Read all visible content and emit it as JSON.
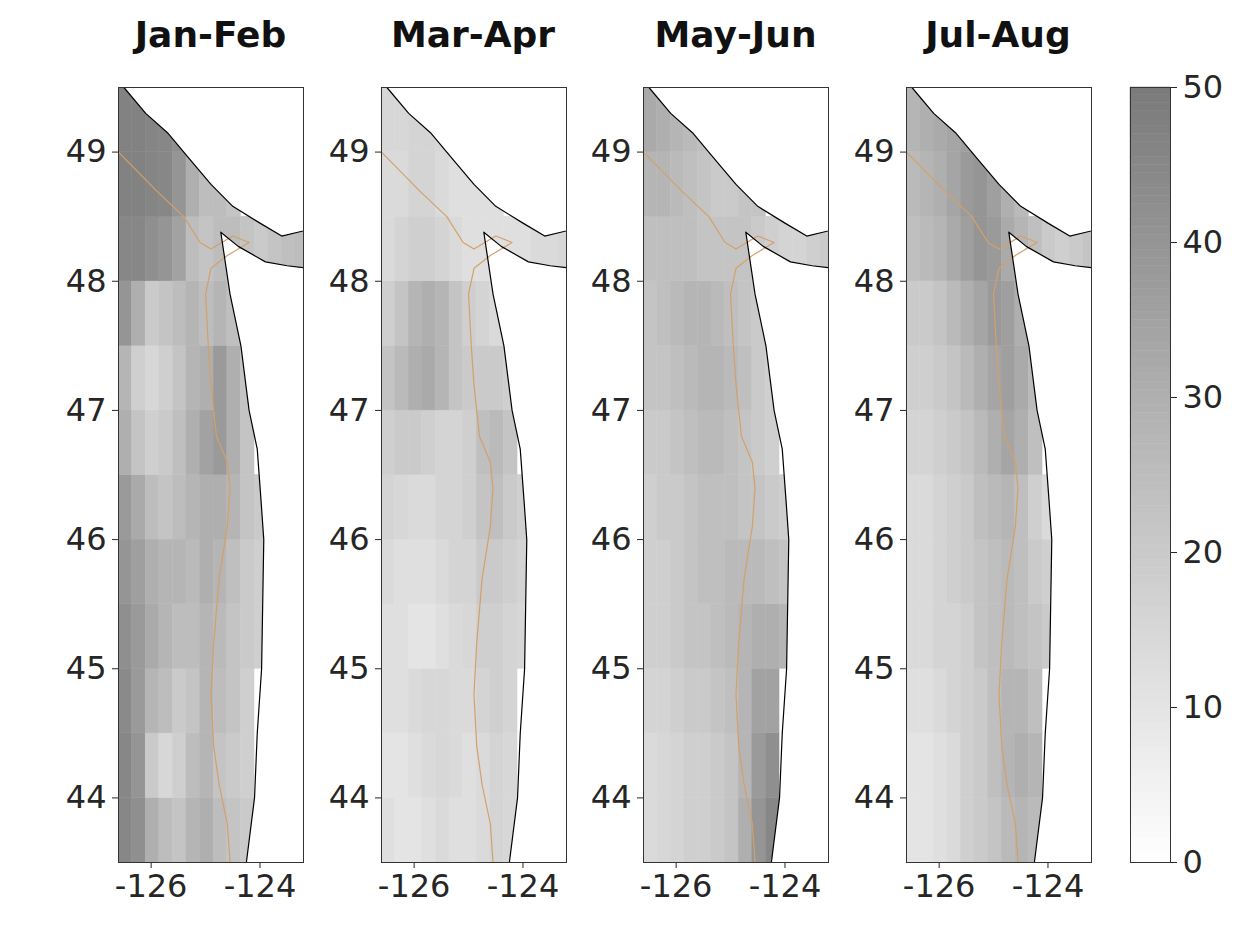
{
  "chart_data": {
    "type": "heatmap",
    "xlim": [
      -126.6,
      -123.2
    ],
    "ylim": [
      43.5,
      49.5
    ],
    "xticks": [
      -126,
      -124
    ],
    "yticks": [
      44,
      45,
      46,
      47,
      48,
      49
    ],
    "lon_edges": [
      -126.6,
      -126.35,
      -126.1,
      -125.85,
      -125.6,
      -125.35,
      -125.1,
      -124.85,
      -124.6,
      -124.35,
      -124.1,
      -123.85,
      -123.6,
      -123.35,
      -123.1
    ],
    "lat_edges": [
      43.5,
      44,
      44.5,
      45,
      45.5,
      46,
      46.5,
      47,
      47.5,
      48,
      48.5,
      49,
      49.5
    ],
    "coastline": [
      [
        -124.25,
        43.5
      ],
      [
        -124.1,
        44.0
      ],
      [
        -124.05,
        44.5
      ],
      [
        -123.97,
        45.0
      ],
      [
        -123.95,
        45.5
      ],
      [
        -123.93,
        46.0
      ],
      [
        -123.98,
        46.3
      ],
      [
        -124.05,
        46.7
      ],
      [
        -124.2,
        47.0
      ],
      [
        -124.35,
        47.5
      ],
      [
        -124.55,
        47.9
      ],
      [
        -124.72,
        48.38
      ],
      [
        -124.4,
        48.27
      ],
      [
        -123.9,
        48.15
      ],
      [
        -123.5,
        48.12
      ],
      [
        -123.1,
        48.1
      ]
    ],
    "island": [
      [
        -126.5,
        49.5
      ],
      [
        -126.1,
        49.3
      ],
      [
        -125.7,
        49.15
      ],
      [
        -125.3,
        48.95
      ],
      [
        -124.9,
        48.75
      ],
      [
        -124.5,
        48.58
      ],
      [
        -124.0,
        48.45
      ],
      [
        -123.6,
        48.35
      ],
      [
        -123.1,
        48.4
      ]
    ],
    "contour": {
      "color": "#d4a06a",
      "points": [
        [
          -126.6,
          49.0
        ],
        [
          -125.9,
          48.7
        ],
        [
          -125.4,
          48.5
        ],
        [
          -125.1,
          48.3
        ],
        [
          -124.9,
          48.25
        ],
        [
          -124.5,
          48.35
        ],
        [
          -124.2,
          48.3
        ],
        [
          -124.6,
          48.2
        ],
        [
          -124.9,
          48.1
        ],
        [
          -125.0,
          47.9
        ],
        [
          -124.95,
          47.5
        ],
        [
          -124.9,
          47.2
        ],
        [
          -124.8,
          46.8
        ],
        [
          -124.6,
          46.6
        ],
        [
          -124.55,
          46.4
        ],
        [
          -124.6,
          46.1
        ],
        [
          -124.75,
          45.7
        ],
        [
          -124.85,
          45.2
        ],
        [
          -124.9,
          44.8
        ],
        [
          -124.85,
          44.4
        ],
        [
          -124.75,
          44.1
        ],
        [
          -124.6,
          43.8
        ],
        [
          -124.55,
          43.5
        ]
      ]
    },
    "colorbar": {
      "range": [
        0,
        50
      ],
      "ticks": [
        0,
        10,
        20,
        30,
        40,
        50
      ]
    },
    "panels": [
      {
        "title": "Jan-Feb",
        "cells": [
          [
            45,
            42,
            30,
            25,
            22,
            28,
            30,
            25,
            22,
            20,
            null,
            null,
            null,
            null
          ],
          [
            45,
            40,
            20,
            15,
            18,
            25,
            28,
            22,
            20,
            18,
            null,
            null,
            null,
            null
          ],
          [
            44,
            38,
            28,
            25,
            20,
            22,
            28,
            25,
            22,
            18,
            null,
            null,
            null,
            null
          ],
          [
            42,
            38,
            32,
            28,
            25,
            25,
            28,
            26,
            22,
            20,
            18,
            null,
            null,
            null
          ],
          [
            40,
            36,
            30,
            28,
            28,
            26,
            30,
            28,
            24,
            20,
            18,
            null,
            null,
            null
          ],
          [
            38,
            32,
            25,
            22,
            25,
            28,
            30,
            30,
            28,
            22,
            20,
            null,
            null,
            null
          ],
          [
            30,
            22,
            18,
            20,
            24,
            30,
            35,
            38,
            30,
            22,
            null,
            null,
            null,
            null
          ],
          [
            28,
            18,
            15,
            18,
            22,
            28,
            30,
            38,
            30,
            22,
            null,
            null,
            null,
            null
          ],
          [
            40,
            30,
            20,
            22,
            25,
            28,
            25,
            28,
            24,
            null,
            null,
            null,
            null,
            null
          ],
          [
            45,
            45,
            42,
            40,
            35,
            25,
            22,
            25,
            25,
            22,
            20,
            22,
            24,
            25
          ],
          [
            47,
            47,
            46,
            45,
            40,
            30,
            25,
            25,
            22,
            null,
            null,
            null,
            null,
            null
          ],
          [
            47,
            47,
            46,
            45,
            42,
            null,
            null,
            null,
            null,
            null,
            null,
            null,
            null,
            null
          ]
        ]
      },
      {
        "title": "Mar-Apr",
        "cells": [
          [
            12,
            10,
            10,
            12,
            14,
            12,
            12,
            14,
            16,
            15,
            null,
            null,
            null,
            null
          ],
          [
            10,
            10,
            12,
            14,
            15,
            14,
            12,
            14,
            16,
            15,
            null,
            null,
            null,
            null
          ],
          [
            12,
            12,
            14,
            15,
            15,
            14,
            14,
            16,
            18,
            16,
            null,
            null,
            null,
            null
          ],
          [
            12,
            12,
            10,
            10,
            12,
            14,
            15,
            18,
            18,
            16,
            15,
            null,
            null,
            null
          ],
          [
            14,
            12,
            12,
            12,
            14,
            16,
            16,
            20,
            20,
            18,
            16,
            null,
            null,
            null
          ],
          [
            16,
            15,
            14,
            14,
            16,
            16,
            18,
            22,
            24,
            20,
            18,
            null,
            null,
            null
          ],
          [
            18,
            20,
            20,
            18,
            16,
            16,
            18,
            24,
            26,
            22,
            null,
            null,
            null,
            null
          ],
          [
            22,
            26,
            30,
            32,
            28,
            22,
            20,
            20,
            20,
            18,
            null,
            null,
            null,
            null
          ],
          [
            18,
            22,
            28,
            30,
            28,
            22,
            18,
            16,
            14,
            null,
            null,
            null,
            null,
            null
          ],
          [
            14,
            16,
            18,
            18,
            16,
            14,
            12,
            12,
            12,
            12,
            12,
            14,
            14,
            15
          ],
          [
            14,
            14,
            16,
            16,
            14,
            12,
            12,
            12,
            12,
            null,
            null,
            null,
            null,
            null
          ],
          [
            15,
            15,
            16,
            16,
            15,
            null,
            null,
            null,
            null,
            null,
            null,
            null,
            null,
            null
          ]
        ]
      },
      {
        "title": "May-Jun",
        "cells": [
          [
            14,
            15,
            16,
            18,
            18,
            20,
            22,
            30,
            40,
            45,
            null,
            null,
            null,
            null
          ],
          [
            14,
            15,
            16,
            18,
            18,
            20,
            22,
            28,
            38,
            42,
            null,
            null,
            null,
            null
          ],
          [
            16,
            16,
            18,
            20,
            20,
            22,
            24,
            28,
            35,
            35,
            null,
            null,
            null,
            null
          ],
          [
            18,
            18,
            20,
            22,
            22,
            24,
            26,
            28,
            30,
            30,
            28,
            null,
            null,
            null
          ],
          [
            18,
            18,
            20,
            22,
            24,
            24,
            26,
            26,
            26,
            24,
            22,
            null,
            null,
            null
          ],
          [
            18,
            20,
            20,
            22,
            24,
            24,
            24,
            22,
            22,
            20,
            18,
            null,
            null,
            null
          ],
          [
            20,
            20,
            22,
            24,
            26,
            26,
            24,
            22,
            20,
            18,
            null,
            null,
            null,
            null
          ],
          [
            22,
            22,
            24,
            26,
            28,
            28,
            26,
            24,
            20,
            18,
            null,
            null,
            null,
            null
          ],
          [
            22,
            24,
            26,
            28,
            28,
            26,
            24,
            22,
            20,
            null,
            null,
            null,
            null,
            null
          ],
          [
            24,
            24,
            24,
            24,
            22,
            22,
            22,
            22,
            20,
            18,
            16,
            16,
            18,
            20
          ],
          [
            28,
            28,
            26,
            24,
            22,
            20,
            20,
            22,
            22,
            null,
            null,
            null,
            null,
            null
          ],
          [
            32,
            30,
            28,
            26,
            24,
            null,
            null,
            null,
            null,
            null,
            null,
            null,
            null,
            null
          ]
        ]
      },
      {
        "title": "Jul-Aug",
        "cells": [
          [
            10,
            10,
            12,
            14,
            18,
            20,
            22,
            26,
            28,
            26,
            null,
            null,
            null,
            null
          ],
          [
            10,
            10,
            12,
            14,
            18,
            20,
            24,
            28,
            30,
            28,
            null,
            null,
            null,
            null
          ],
          [
            12,
            12,
            14,
            16,
            18,
            20,
            24,
            28,
            28,
            24,
            null,
            null,
            null,
            null
          ],
          [
            14,
            14,
            16,
            16,
            18,
            22,
            24,
            26,
            24,
            22,
            20,
            null,
            null,
            null
          ],
          [
            14,
            14,
            16,
            18,
            20,
            22,
            24,
            26,
            24,
            20,
            18,
            null,
            null,
            null
          ],
          [
            14,
            14,
            16,
            18,
            20,
            24,
            26,
            28,
            24,
            18,
            14,
            null,
            null,
            null
          ],
          [
            16,
            16,
            18,
            20,
            22,
            26,
            30,
            34,
            30,
            24,
            null,
            null,
            null,
            null
          ],
          [
            18,
            18,
            20,
            22,
            26,
            30,
            34,
            36,
            32,
            26,
            null,
            null,
            null,
            null
          ],
          [
            20,
            20,
            22,
            26,
            30,
            34,
            38,
            36,
            30,
            null,
            null,
            null,
            null,
            null
          ],
          [
            24,
            26,
            28,
            32,
            36,
            40,
            38,
            32,
            28,
            24,
            20,
            18,
            20,
            22
          ],
          [
            26,
            28,
            30,
            34,
            38,
            40,
            36,
            30,
            26,
            null,
            null,
            null,
            null,
            null
          ],
          [
            28,
            30,
            32,
            34,
            36,
            null,
            null,
            null,
            null,
            null,
            null,
            null,
            null,
            null
          ]
        ]
      }
    ]
  }
}
